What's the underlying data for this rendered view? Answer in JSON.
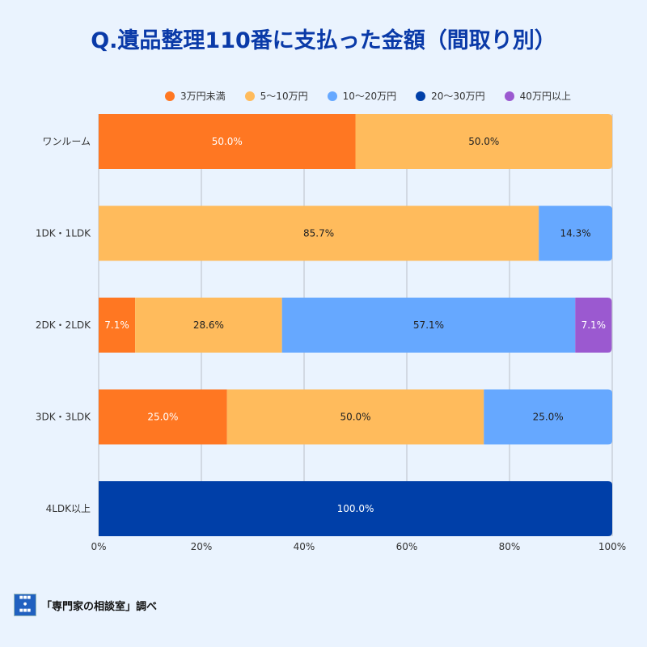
{
  "chart_data": {
    "type": "bar",
    "orientation": "horizontal",
    "stacked": true,
    "title": "Q.遺品整理110番に支払った金額（間取り別）",
    "categories": [
      "ワンルーム",
      "1DK・1LDK",
      "2DK・2LDK",
      "3DK・3LDK",
      "4LDK以上"
    ],
    "series": [
      {
        "name": "3万円未満",
        "color": "#ff7722",
        "label_color": "#ffffff",
        "values": [
          50.0,
          0,
          7.1,
          25.0,
          0
        ]
      },
      {
        "name": "5〜10万円",
        "color": "#ffbb5c",
        "label_color": "#222222",
        "values": [
          50.0,
          85.7,
          28.6,
          50.0,
          0
        ]
      },
      {
        "name": "10〜20万円",
        "color": "#66a8ff",
        "label_color": "#222222",
        "values": [
          0,
          14.3,
          57.1,
          25.0,
          0
        ]
      },
      {
        "name": "20〜30万円",
        "color": "#003fa8",
        "label_color": "#ffffff",
        "values": [
          0,
          0,
          0,
          0,
          100.0
        ]
      },
      {
        "name": "40万円以上",
        "color": "#9b59d0",
        "label_color": "#ffffff",
        "values": [
          0,
          0,
          7.1,
          0,
          0
        ]
      }
    ],
    "xlim": [
      0,
      100
    ],
    "xticks": [
      "0%",
      "20%",
      "40%",
      "60%",
      "80%",
      "100%"
    ],
    "grid": true,
    "legend_position": "top"
  },
  "footer": {
    "source": "「専門家の相談室」調べ",
    "logo_text": "専門家の相談室"
  }
}
